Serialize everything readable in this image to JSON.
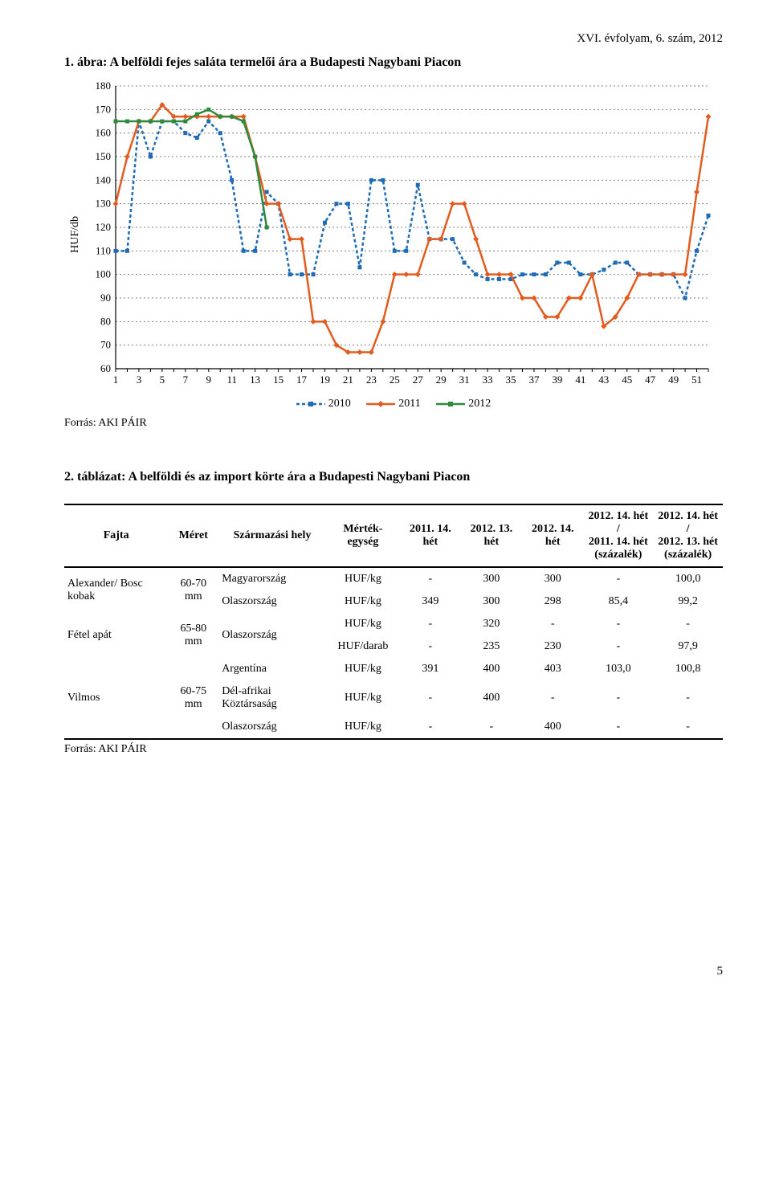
{
  "header": {
    "issue": "XVI. évfolyam, 6. szám, 2012"
  },
  "figure": {
    "title": "1. ábra: A belföldi fejes saláta termelői ára a Budapesti Nagybani Piacon",
    "ylabel": "HUF/db",
    "source": "Forrás: AKI PÁIR",
    "chart": {
      "type": "line",
      "xlim": [
        1,
        52
      ],
      "ylim": [
        60,
        180
      ],
      "ytick_step": 10,
      "xticks": [
        1,
        3,
        5,
        7,
        9,
        11,
        13,
        15,
        17,
        19,
        21,
        23,
        25,
        27,
        29,
        31,
        33,
        35,
        37,
        39,
        41,
        43,
        45,
        47,
        49,
        51
      ],
      "background_color": "#ffffff",
      "grid_color": "#7f7f7f",
      "grid_dash": "2 3",
      "axis_color": "#000000",
      "tick_fontsize": 13,
      "marker_size": 5,
      "line_width": 2.5,
      "series": [
        {
          "name": "2010",
          "year_label": "2010",
          "color": "#1f6bb5",
          "dash": "4 3",
          "marker": "square",
          "x": [
            1,
            2,
            3,
            4,
            5,
            6,
            7,
            8,
            9,
            10,
            11,
            12,
            13,
            14,
            15,
            16,
            17,
            18,
            19,
            20,
            21,
            22,
            23,
            24,
            25,
            26,
            27,
            28,
            29,
            30,
            31,
            32,
            33,
            34,
            35,
            36,
            37,
            38,
            39,
            40,
            41,
            42,
            43,
            44,
            45,
            46,
            47,
            48,
            49,
            50,
            51,
            52
          ],
          "y": [
            110,
            110,
            165,
            150,
            165,
            165,
            160,
            158,
            165,
            160,
            140,
            110,
            110,
            135,
            130,
            100,
            100,
            100,
            122,
            130,
            130,
            103,
            140,
            140,
            110,
            110,
            138,
            115,
            115,
            115,
            105,
            100,
            98,
            98,
            98,
            100,
            100,
            100,
            105,
            105,
            100,
            100,
            102,
            105,
            105,
            100,
            100,
            100,
            100,
            90,
            110,
            125
          ]
        },
        {
          "name": "2011",
          "year_label": "2011",
          "color": "#e25b1f",
          "dash": "none",
          "marker": "diamond",
          "x": [
            1,
            2,
            3,
            4,
            5,
            6,
            7,
            8,
            9,
            10,
            11,
            12,
            13,
            14,
            15,
            16,
            17,
            18,
            19,
            20,
            21,
            22,
            23,
            24,
            25,
            26,
            27,
            28,
            29,
            30,
            31,
            32,
            33,
            34,
            35,
            36,
            37,
            38,
            39,
            40,
            41,
            42,
            43,
            44,
            45,
            46,
            47,
            48,
            49,
            50,
            51,
            52
          ],
          "y": [
            130,
            150,
            165,
            165,
            172,
            167,
            167,
            167,
            167,
            167,
            167,
            167,
            150,
            130,
            130,
            115,
            115,
            80,
            80,
            70,
            67,
            67,
            67,
            80,
            100,
            100,
            100,
            115,
            115,
            130,
            130,
            115,
            100,
            100,
            100,
            90,
            90,
            82,
            82,
            90,
            90,
            100,
            78,
            82,
            90,
            100,
            100,
            100,
            100,
            100,
            135,
            167
          ]
        },
        {
          "name": "2012",
          "year_label": "2012",
          "color": "#2e8b3d",
          "dash": "none",
          "marker": "square",
          "x": [
            1,
            2,
            3,
            4,
            5,
            6,
            7,
            8,
            9,
            10,
            11,
            12,
            13,
            14
          ],
          "y": [
            165,
            165,
            165,
            165,
            165,
            165,
            165,
            168,
            170,
            167,
            167,
            165,
            150,
            120
          ]
        }
      ],
      "legend": {
        "labels": [
          "2010",
          "2011",
          "2012"
        ],
        "position": "below"
      }
    }
  },
  "table": {
    "title": "2. táblázat: A belföldi és az import körte ára a Budapesti Nagybani Piacon",
    "source": "Forrás: AKI PÁIR",
    "columns": [
      "Fajta",
      "Méret",
      "Származási hely",
      "Mérték-egység",
      "2011. 14. hét",
      "2012. 13. hét",
      "2012. 14. hét",
      "2012. 14. hét / 2011. 14. hét (százalék)",
      "2012. 14. hét / 2012. 13. hét (százalék)"
    ],
    "col_head": {
      "c1": "Fajta",
      "c2": "Méret",
      "c3": "Származási hely",
      "c4": "Mérték-egység",
      "c5": "2011. 14. hét",
      "c6": "2012. 13. hét",
      "c7": "2012. 14. hét",
      "c8a": "2012. 14. hét /",
      "c8b": "2011. 14. hét",
      "c8c": "(százalék)",
      "c9a": "2012. 14. hét /",
      "c9b": "2012. 13. hét",
      "c9c": "(százalék)"
    },
    "rows": [
      {
        "fajta": "Alexander/ Bosc kobak",
        "meret": "60-70 mm",
        "orig": "Magyarország",
        "unit": "HUF/kg",
        "v1": "-",
        "v2": "300",
        "v3": "300",
        "p1": "-",
        "p2": "100,0"
      },
      {
        "fajta": "",
        "meret": "",
        "orig": "Olaszország",
        "unit": "HUF/kg",
        "v1": "349",
        "v2": "300",
        "v3": "298",
        "p1": "85,4",
        "p2": "99,2"
      },
      {
        "fajta": "Fétel apát",
        "meret": "65-80 mm",
        "orig": "Olaszország",
        "unit": "HUF/kg",
        "v1": "-",
        "v2": "320",
        "v3": "-",
        "p1": "-",
        "p2": "-"
      },
      {
        "fajta": "",
        "meret": "",
        "orig": "",
        "unit": "HUF/darab",
        "v1": "-",
        "v2": "235",
        "v3": "230",
        "p1": "-",
        "p2": "97,9"
      },
      {
        "fajta": "Vilmos",
        "meret": "60-75 mm",
        "orig": "Argentína",
        "unit": "HUF/kg",
        "v1": "391",
        "v2": "400",
        "v3": "403",
        "p1": "103,0",
        "p2": "100,8"
      },
      {
        "fajta": "",
        "meret": "",
        "orig": "Dél-afrikai Köztársaság",
        "unit": "HUF/kg",
        "v1": "-",
        "v2": "400",
        "v3": "-",
        "p1": "-",
        "p2": "-"
      },
      {
        "fajta": "",
        "meret": "",
        "orig": "Olaszország",
        "unit": "HUF/kg",
        "v1": "-",
        "v2": "-",
        "v3": "400",
        "p1": "-",
        "p2": "-"
      }
    ]
  },
  "page_number": "5"
}
